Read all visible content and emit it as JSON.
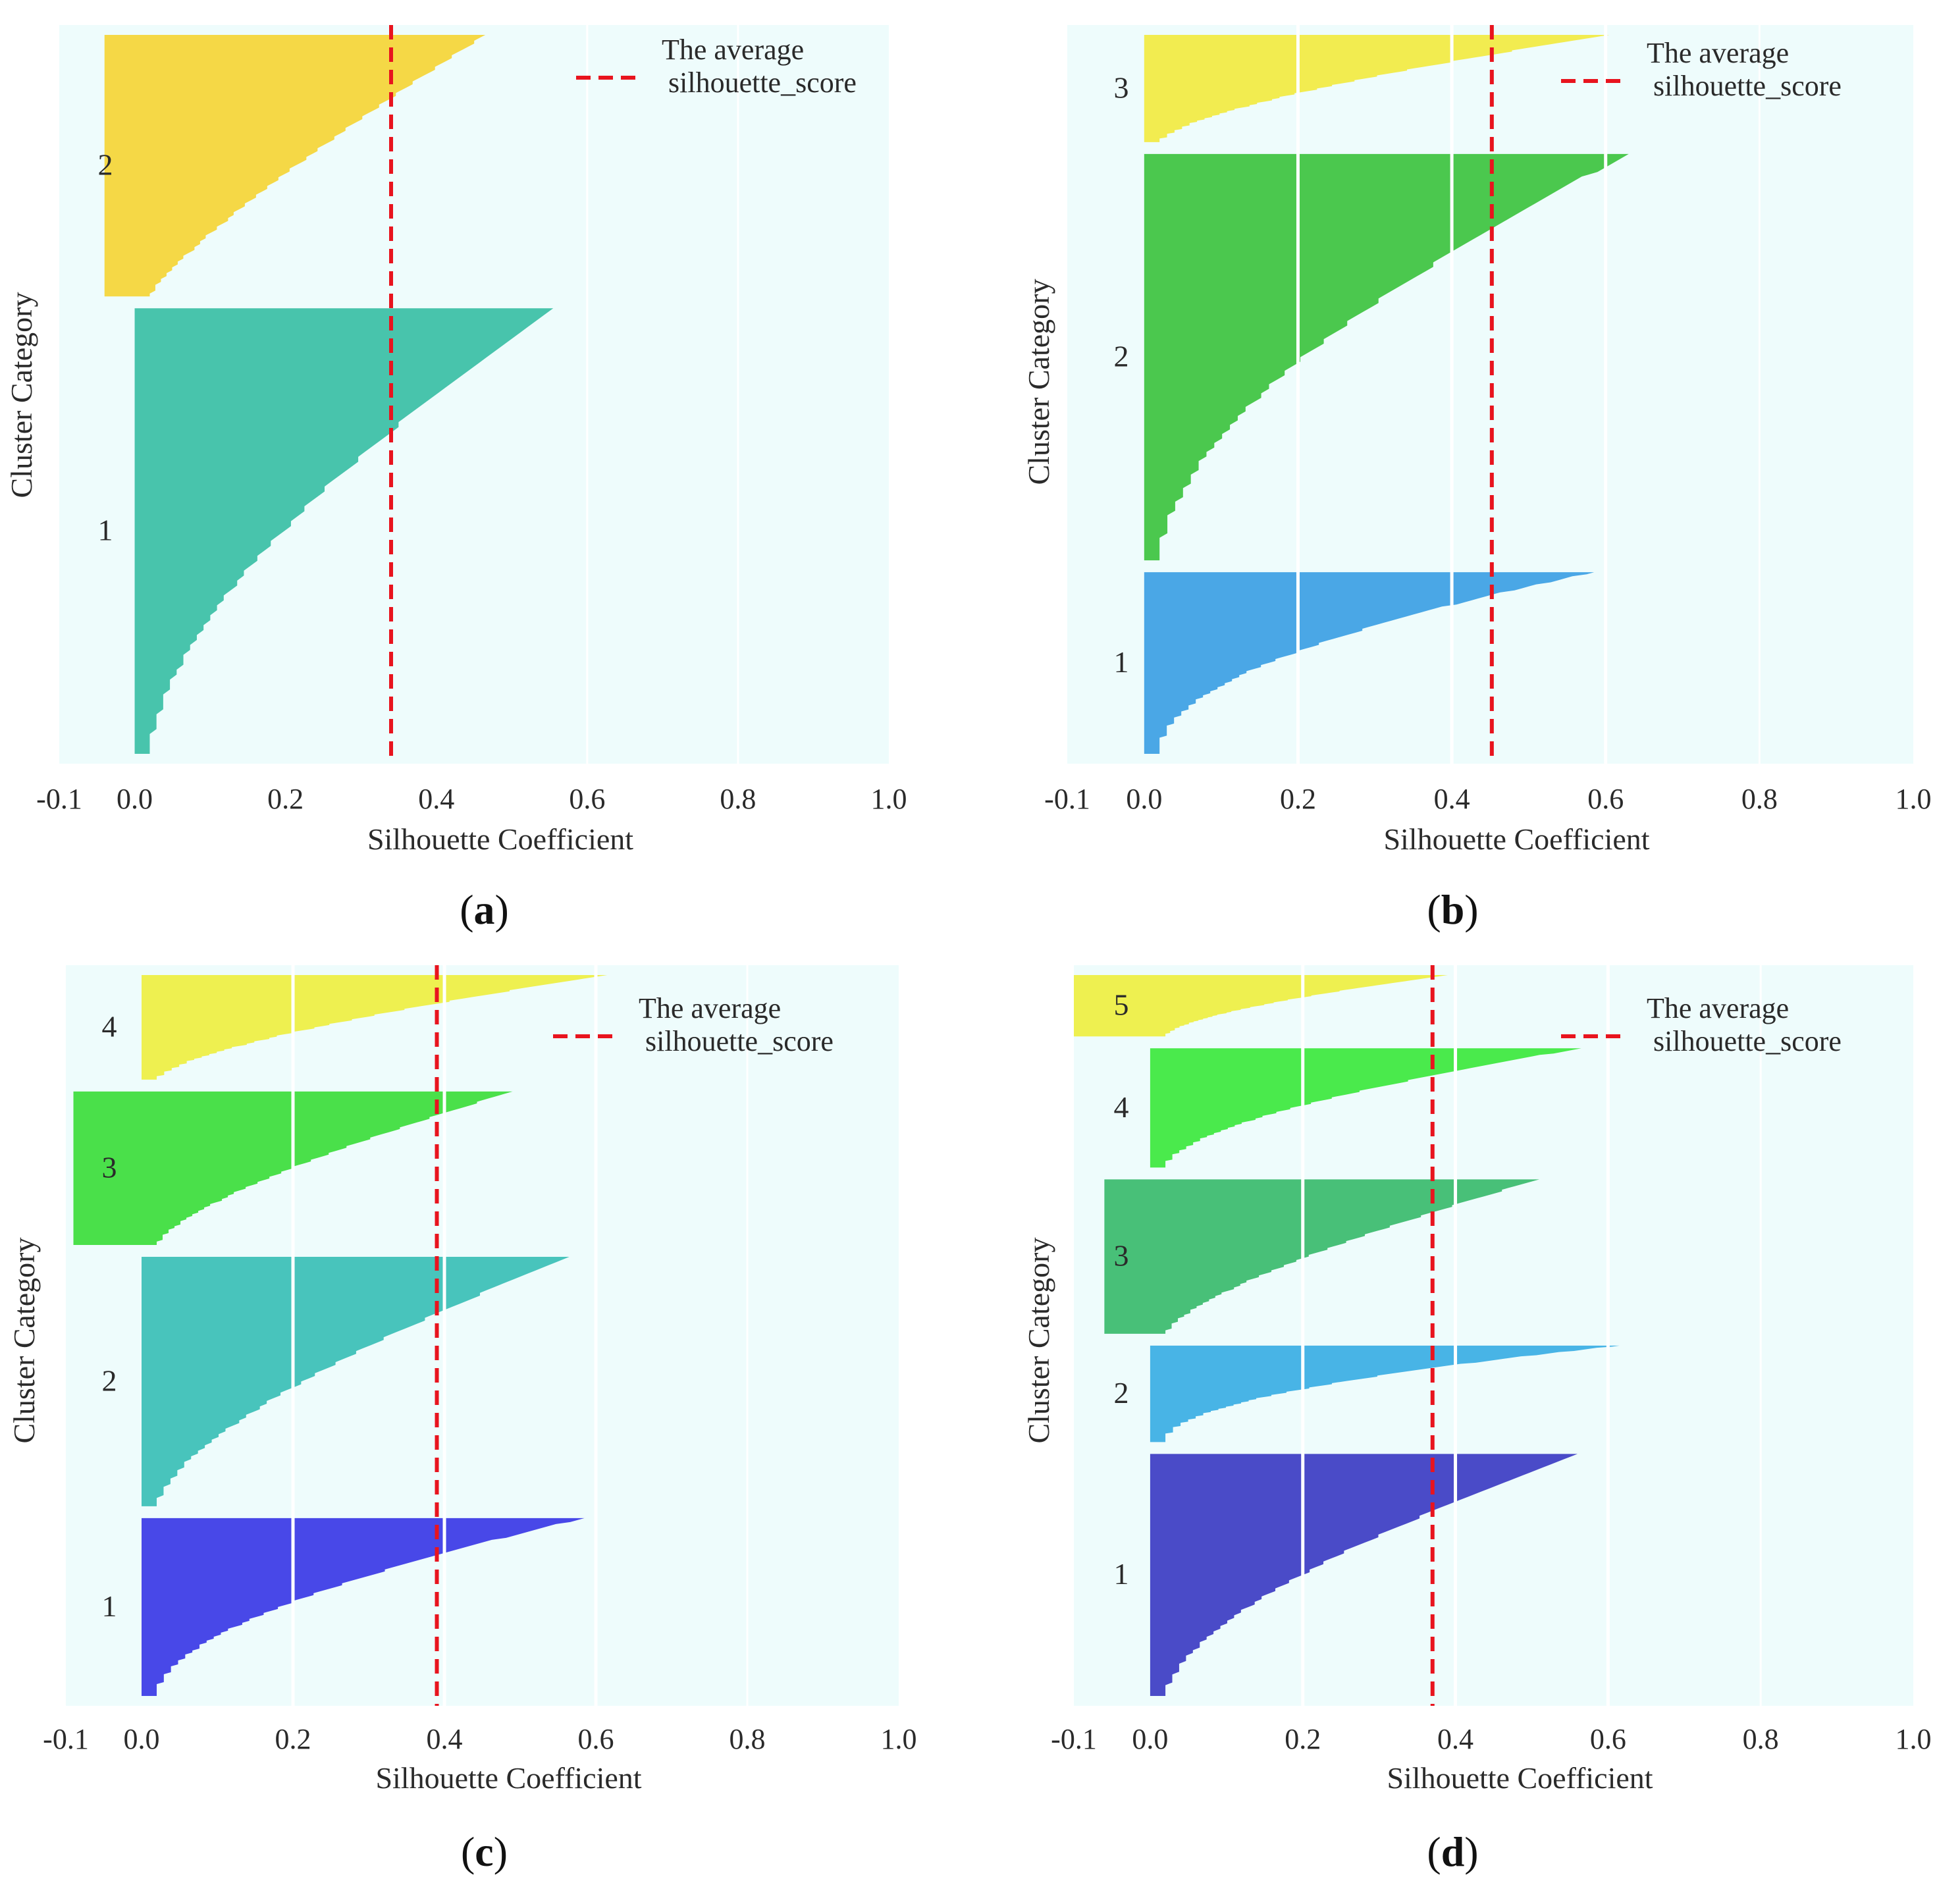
{
  "chart_data": [
    {
      "panel_label": "a",
      "type": "silhouette",
      "xlabel": "Silhouette Coefficient",
      "ylabel": "Cluster Category",
      "xlim": [
        -0.1,
        1.0
      ],
      "xticks": [
        "-0.1",
        "0.0",
        "0.2",
        "0.4",
        "0.6",
        "0.8",
        "1.0"
      ],
      "grid": false,
      "legend": {
        "line1": "The average",
        "line2": "silhouette_score",
        "position": "top-right"
      },
      "average_silhouette_score": 0.34,
      "clusters": [
        {
          "label": "1",
          "color": "#48c4ac",
          "start": 0.0,
          "max": 0.555,
          "shape": 1.6,
          "size": 230
        },
        {
          "label": "2",
          "color": "#f5d846",
          "start": -0.04,
          "max": 0.465,
          "shape": 1.2,
          "size": 135
        }
      ]
    },
    {
      "panel_label": "b",
      "type": "silhouette",
      "xlabel": "Silhouette Coefficient",
      "ylabel": "Cluster Category",
      "xlim": [
        -0.1,
        1.0
      ],
      "xticks": [
        "-0.1",
        "0.0",
        "0.2",
        "0.4",
        "0.6",
        "0.8",
        "1.0"
      ],
      "grid": true,
      "legend": {
        "line1": "The average",
        "line2": "silhouette_score",
        "position": "top-right"
      },
      "average_silhouette_score": 0.452,
      "clusters": [
        {
          "label": "1",
          "color": "#4aa7e6",
          "start": 0.0,
          "max": 0.585,
          "shape": 2.0,
          "size": 105
        },
        {
          "label": "2",
          "color": "#4bc84e",
          "start": 0.0,
          "max": 0.63,
          "shape": 1.7,
          "size": 235
        },
        {
          "label": "3",
          "color": "#f2ec50",
          "start": 0.0,
          "max": 0.605,
          "shape": 1.5,
          "size": 62
        }
      ]
    },
    {
      "panel_label": "c",
      "type": "silhouette",
      "xlabel": "Silhouette Coefficient",
      "ylabel": "Cluster Category",
      "xlim": [
        -0.1,
        1.0
      ],
      "xticks": [
        "-0.1",
        "0.0",
        "0.2",
        "0.4",
        "0.6",
        "0.8",
        "1.0"
      ],
      "grid": true,
      "legend": {
        "line1": "The average",
        "line2": "silhouette_score",
        "position": "top-right"
      },
      "average_silhouette_score": 0.39,
      "clusters": [
        {
          "label": "1",
          "color": "#4848e8",
          "start": 0.0,
          "max": 0.585,
          "shape": 1.8,
          "size": 102
        },
        {
          "label": "2",
          "color": "#48c4bc",
          "start": 0.0,
          "max": 0.565,
          "shape": 1.5,
          "size": 143
        },
        {
          "label": "3",
          "color": "#4ae04a",
          "start": -0.09,
          "max": 0.49,
          "shape": 1.4,
          "size": 88
        },
        {
          "label": "4",
          "color": "#eef050",
          "start": 0.0,
          "max": 0.615,
          "shape": 1.5,
          "size": 60
        }
      ]
    },
    {
      "panel_label": "d",
      "type": "silhouette",
      "xlabel": "Silhouette Coefficient",
      "ylabel": "Cluster Category",
      "xlim": [
        -0.1,
        1.0
      ],
      "xticks": [
        "-0.1",
        "0.0",
        "0.2",
        "0.4",
        "0.6",
        "0.8",
        "1.0"
      ],
      "grid": true,
      "legend": {
        "line1": "The average",
        "line2": "silhouette_score",
        "position": "top-right"
      },
      "average_silhouette_score": 0.37,
      "clusters": [
        {
          "label": "1",
          "color": "#4a4bc8",
          "start": 0.0,
          "max": 0.56,
          "shape": 1.6,
          "size": 138
        },
        {
          "label": "2",
          "color": "#48b4e6",
          "start": 0.0,
          "max": 0.615,
          "shape": 2.0,
          "size": 55
        },
        {
          "label": "3",
          "color": "#48c078",
          "start": -0.06,
          "max": 0.51,
          "shape": 1.4,
          "size": 88
        },
        {
          "label": "4",
          "color": "#4aea4c",
          "start": 0.0,
          "max": 0.565,
          "shape": 1.7,
          "size": 68
        },
        {
          "label": "5",
          "color": "#eef050",
          "start": -0.1,
          "max": 0.39,
          "shape": 1.6,
          "size": 35
        }
      ]
    }
  ]
}
